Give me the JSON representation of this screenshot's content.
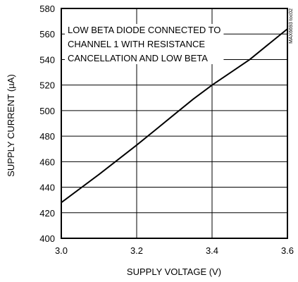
{
  "chart_data": {
    "type": "line",
    "xlabel": "SUPPLY VOLTAGE (V)",
    "ylabel": "SUPPLY CURRENT (µA)",
    "xlim": [
      3.0,
      3.6
    ],
    "ylim": [
      400,
      580
    ],
    "xticks": [
      "3.0",
      "3.2",
      "3.4",
      "3.6"
    ],
    "yticks": [
      "400",
      "420",
      "440",
      "460",
      "480",
      "500",
      "520",
      "540",
      "560",
      "580"
    ],
    "grid": true,
    "annotation": [
      "LOW BETA DIODE CONNECTED TO",
      "CHANNEL 1 WITH RESISTANCE",
      "CANCELLATION AND LOW BETA"
    ],
    "figure_code": "MAX6693 toc02",
    "series": [
      {
        "x": [
          3.0,
          3.1,
          3.2,
          3.25,
          3.3,
          3.35,
          3.4,
          3.45,
          3.5,
          3.55,
          3.6
        ],
        "y": [
          428,
          450,
          473,
          485,
          497,
          509,
          520,
          530,
          540,
          552,
          564
        ]
      }
    ],
    "colors": {
      "line": "#000000",
      "frame": "#000000",
      "grid": "#000000"
    }
  }
}
